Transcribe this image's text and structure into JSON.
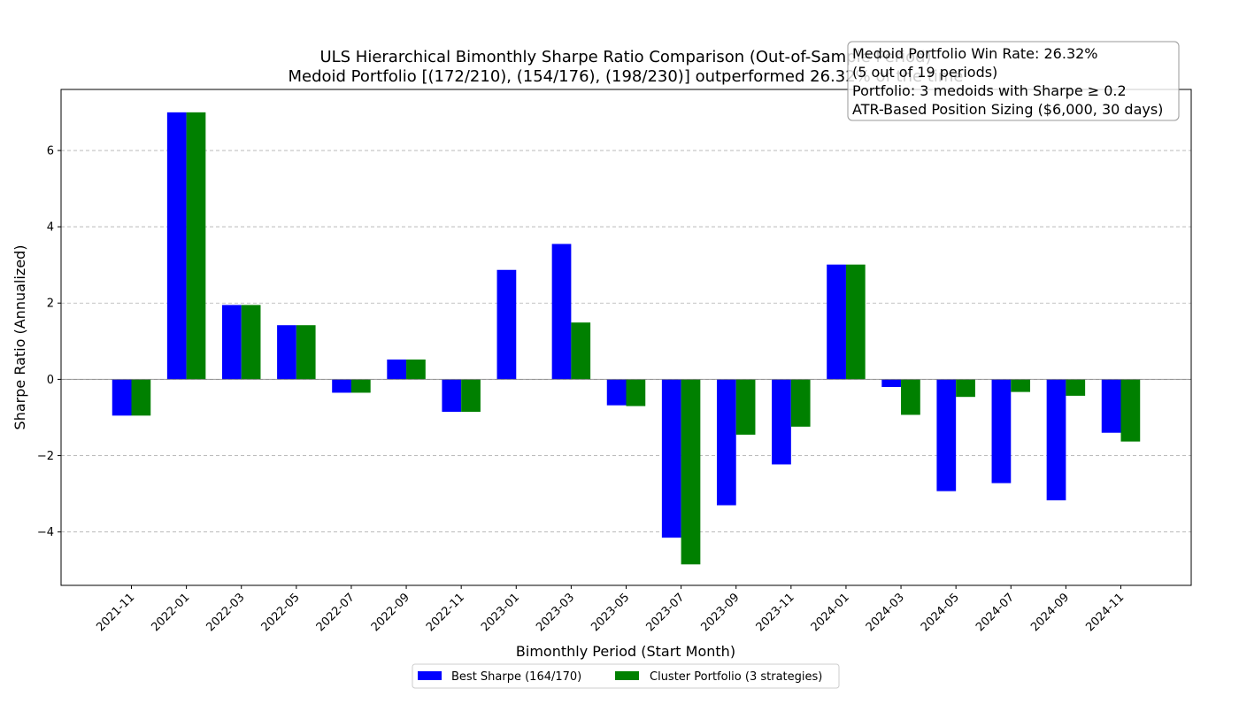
{
  "chart_data": {
    "type": "bar",
    "title": "ULS Hierarchical Bimonthly Sharpe Ratio Comparison (Out-of-Sample Period)",
    "subtitle": "Medoid Portfolio [(172/210), (154/176), (198/230)] outperformed 26.32% of the time",
    "xlabel": "Bimonthly Period (Start Month)",
    "ylabel": "Sharpe Ratio (Annualized)",
    "ylim": [
      -5.4,
      7.6
    ],
    "yticks": [
      -4,
      -2,
      0,
      2,
      4,
      6
    ],
    "grid": "y-dashed",
    "legend_position": "bottom-center",
    "categories": [
      "2021-11",
      "2022-01",
      "2022-03",
      "2022-05",
      "2022-07",
      "2022-09",
      "2022-11",
      "2023-01",
      "2023-03",
      "2023-05",
      "2023-07",
      "2023-09",
      "2023-11",
      "2024-01",
      "2024-03",
      "2024-05",
      "2024-07",
      "2024-09",
      "2024-11"
    ],
    "series": [
      {
        "name": "Best Sharpe (164/170)",
        "color": "#0000ff",
        "values": [
          -0.95,
          7.0,
          1.95,
          1.42,
          -0.35,
          0.52,
          -0.85,
          2.87,
          3.55,
          -0.68,
          -4.15,
          -3.3,
          -2.23,
          3.01,
          -0.2,
          -2.93,
          -2.72,
          -3.17,
          -1.4
        ]
      },
      {
        "name": "Cluster Portfolio (3 strategies)",
        "color": "#008000",
        "values": [
          -0.95,
          7.0,
          1.95,
          1.42,
          -0.35,
          0.52,
          -0.85,
          0.0,
          1.49,
          -0.7,
          -4.85,
          -1.45,
          -1.24,
          3.01,
          -0.93,
          -0.46,
          -0.33,
          -0.43,
          -1.63
        ]
      }
    ],
    "annotation": [
      "Medoid Portfolio Win Rate: 26.32%",
      "(5 out of 19 periods)",
      "Portfolio: 3 medoids with Sharpe ≥ 0.2",
      "ATR-Based Position Sizing ($6,000, 30 days)"
    ]
  }
}
